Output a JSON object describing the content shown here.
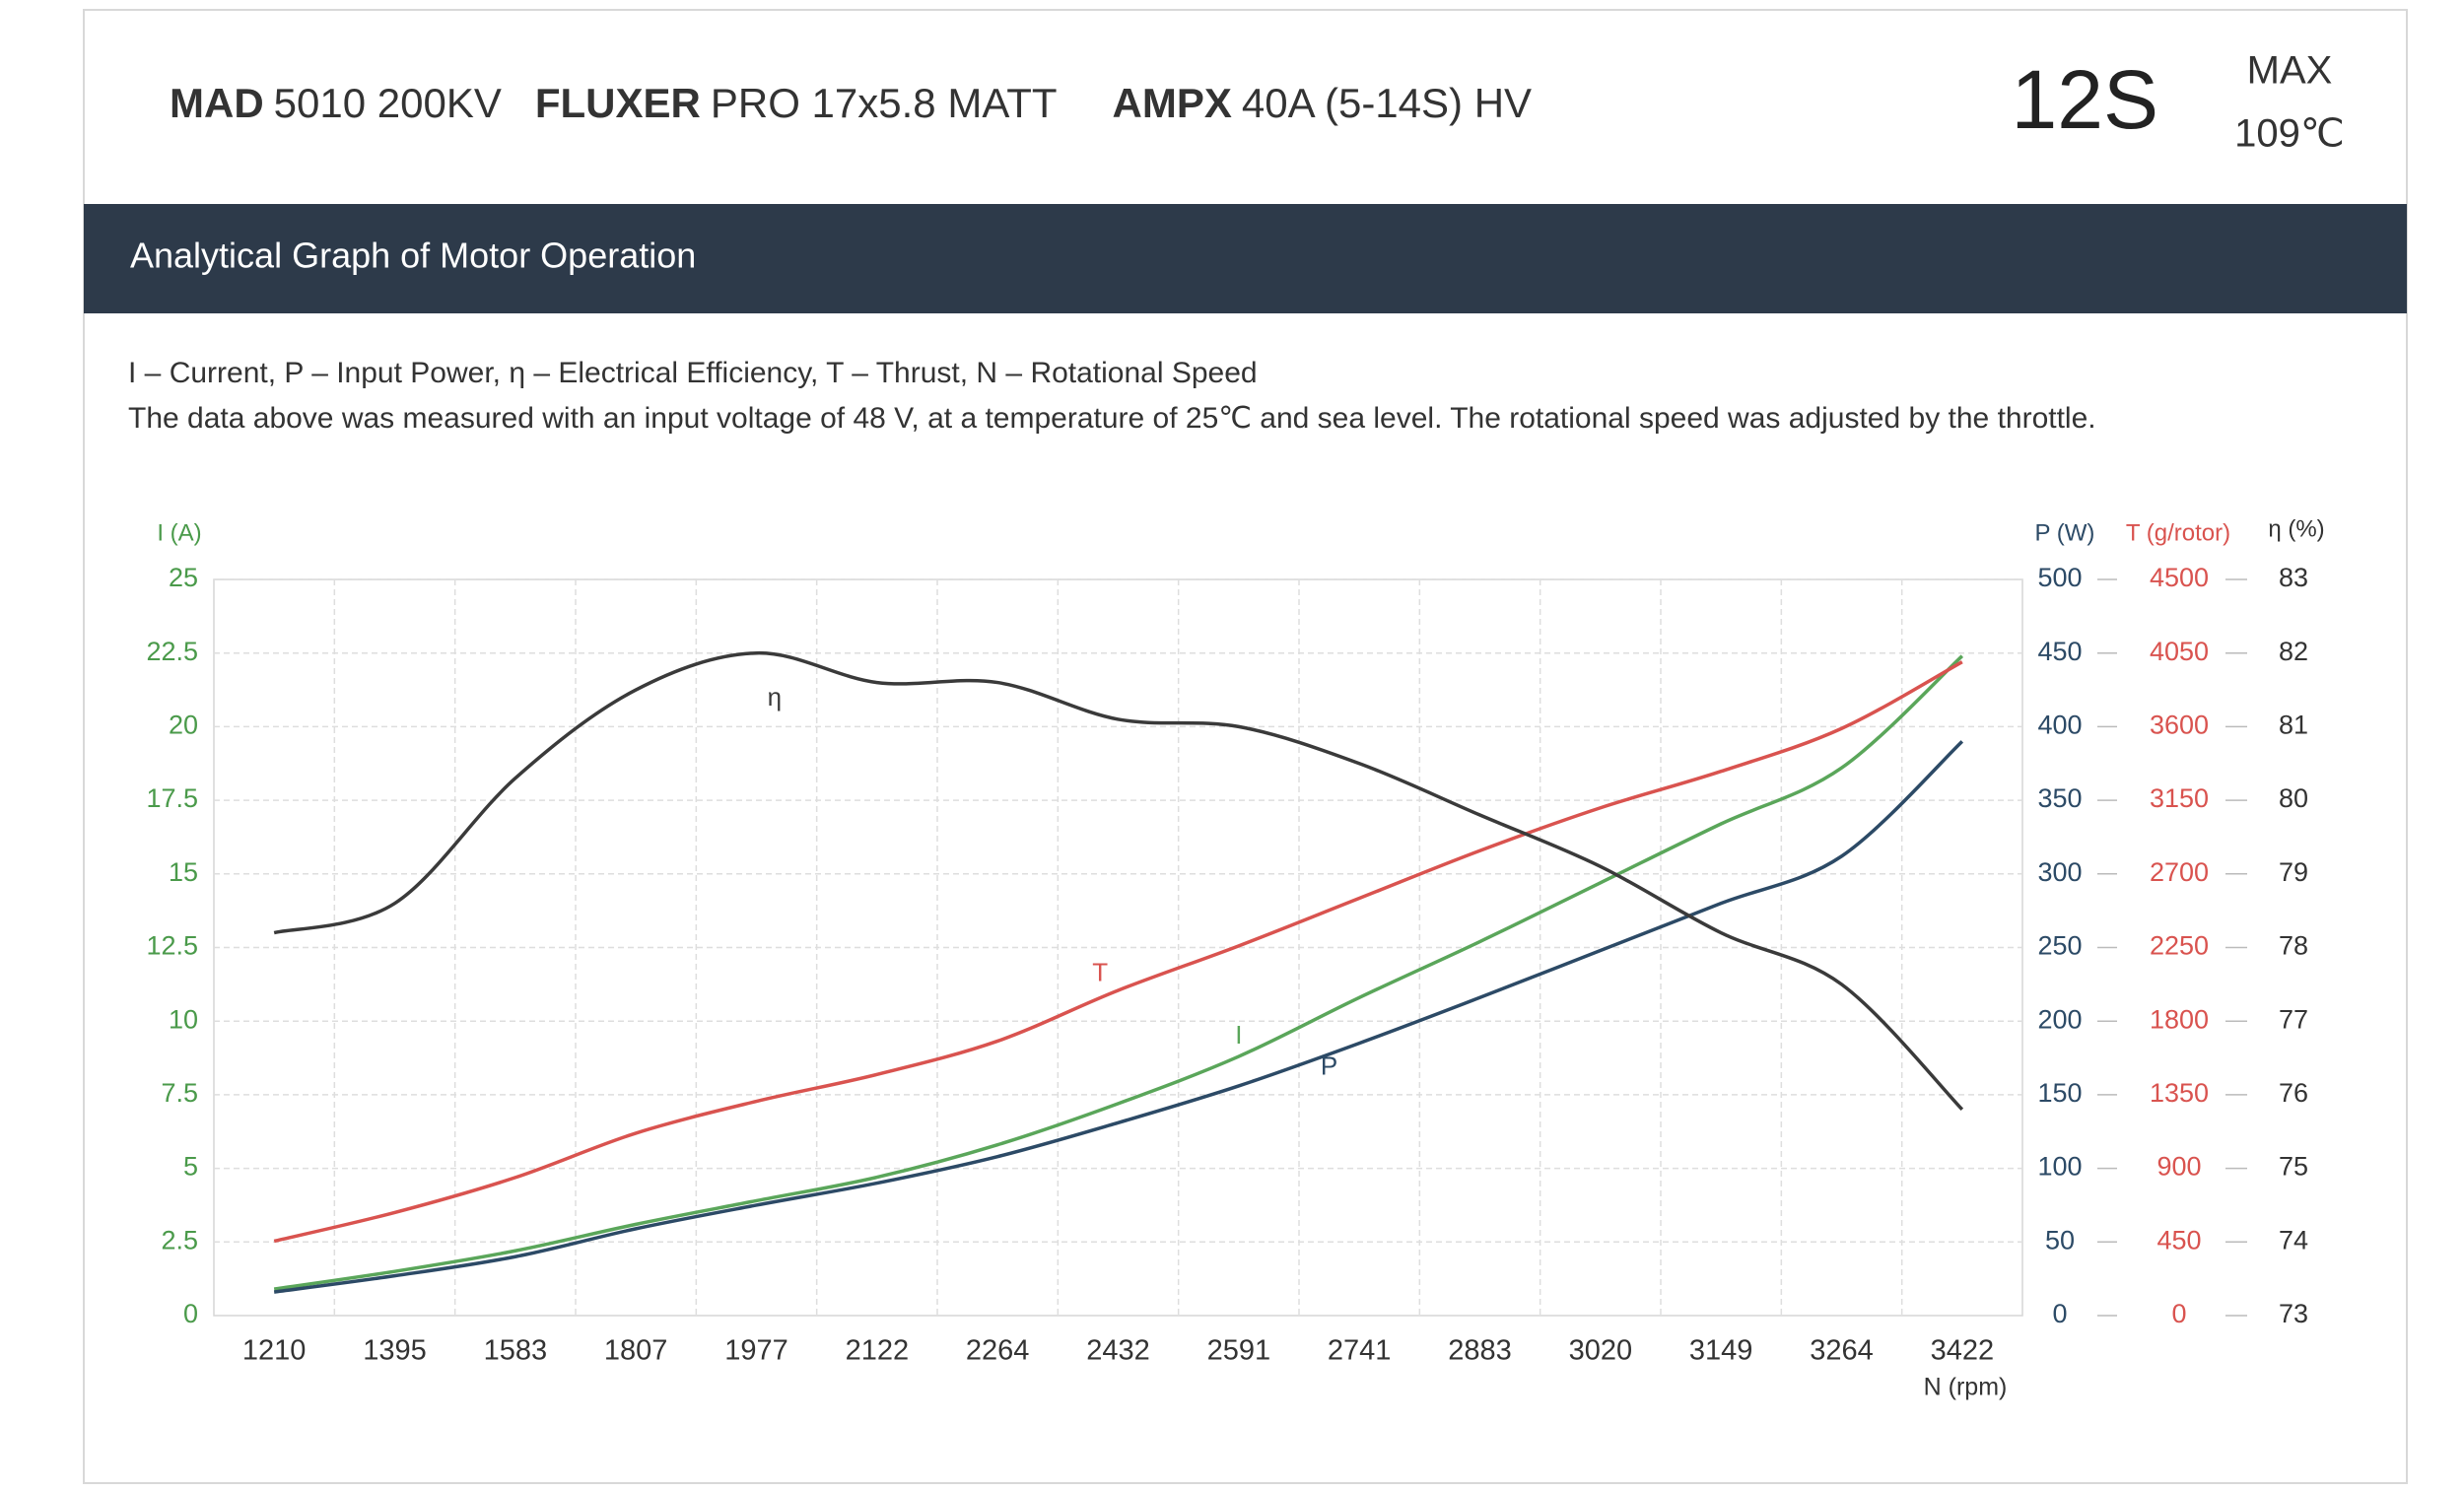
{
  "header": {
    "components": [
      {
        "brand": "MAD",
        "model": "5010 200KV"
      },
      {
        "brand": "FLUXER",
        "model": "PRO 17x5.8 MATT"
      },
      {
        "brand": "AMPX",
        "model": "40A (5-14S) HV"
      }
    ],
    "cells": "12S",
    "max_label": "MAX",
    "max_temp": "109℃"
  },
  "section_title": "Analytical Graph of Motor Operation",
  "notes": [
    "I – Current, P – Input Power, η – Electrical Efficiency, T – Thrust,   N – Rotational Speed",
    "The data above was measured with an input voltage of 48 V, at a temperature of 25℃ and sea level. The rotational speed was adjusted by the throttle."
  ],
  "chart_data": {
    "type": "line",
    "categories": [
      "1210",
      "1395",
      "1583",
      "1807",
      "1977",
      "2122",
      "2264",
      "2432",
      "2591",
      "2741",
      "2883",
      "3020",
      "3149",
      "3264",
      "3422"
    ],
    "xlabel": "N (rpm)",
    "ylabel": "I (A)",
    "ylim": [
      0,
      25
    ],
    "yticks": [
      0,
      2.5,
      5,
      7.5,
      10,
      12.5,
      15,
      17.5,
      20,
      22.5,
      25
    ],
    "y2label": "P (W)",
    "y2lim": [
      0,
      500
    ],
    "y2ticks": [
      0,
      50,
      100,
      150,
      200,
      250,
      300,
      350,
      400,
      450,
      500
    ],
    "y3label": "T (g/rotor)",
    "y3lim": [
      0,
      4500
    ],
    "y3ticks": [
      0,
      450,
      900,
      1350,
      1800,
      2250,
      2700,
      3150,
      3600,
      4050,
      4500
    ],
    "y4label": "η (%)",
    "y4lim": [
      73,
      83
    ],
    "y4ticks": [
      73,
      74,
      75,
      76,
      77,
      78,
      79,
      80,
      81,
      82,
      83
    ],
    "grid": true,
    "series": [
      {
        "name": "I",
        "color": "#5aa65a",
        "axis": "y",
        "values": [
          0.9,
          1.5,
          2.2,
          3.1,
          3.9,
          4.7,
          5.8,
          7.2,
          8.8,
          10.8,
          12.7,
          14.7,
          16.7,
          18.6,
          22.4
        ]
      },
      {
        "name": "P",
        "color": "#2c4a66",
        "axis": "y2",
        "values": [
          16,
          27,
          40,
          59,
          75,
          90,
          108,
          131,
          156,
          185,
          216,
          248,
          280,
          312,
          390
        ]
      },
      {
        "name": "T",
        "color": "#d9534f",
        "axis": "y3",
        "values": [
          455,
          630,
          844,
          1115,
          1310,
          1474,
          1678,
          1988,
          2260,
          2551,
          2842,
          3104,
          3327,
          3589,
          3996
        ]
      },
      {
        "name": "η",
        "color": "#3a3a3a",
        "axis": "y4",
        "values": [
          78.2,
          78.6,
          80.3,
          81.5,
          82.0,
          81.6,
          81.6,
          81.1,
          81.0,
          80.5,
          79.8,
          79.1,
          78.2,
          77.5,
          75.8
        ]
      }
    ]
  }
}
